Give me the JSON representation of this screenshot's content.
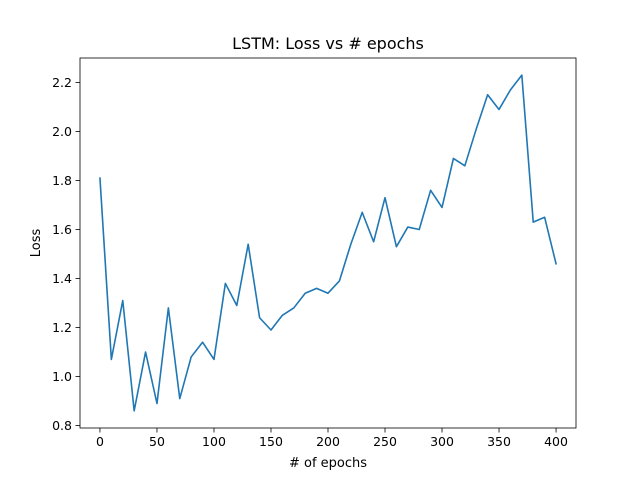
{
  "chart_data": {
    "type": "line",
    "title": "LSTM: Loss vs # epochs",
    "xlabel": "# of epochs",
    "ylabel": "Loss",
    "xlim": [
      -17.5,
      417.5
    ],
    "ylim": [
      0.79,
      2.3
    ],
    "xticks": [
      0,
      50,
      100,
      150,
      200,
      250,
      300,
      350,
      400
    ],
    "yticks": [
      0.8,
      1.0,
      1.2,
      1.4,
      1.6,
      1.8,
      2.0,
      2.2
    ],
    "grid": false,
    "legend": "none",
    "series": [
      {
        "color": "#1f77b4",
        "x": [
          0,
          10,
          20,
          30,
          40,
          50,
          60,
          70,
          80,
          90,
          100,
          110,
          120,
          130,
          140,
          150,
          160,
          170,
          180,
          190,
          200,
          210,
          220,
          230,
          240,
          250,
          260,
          270,
          280,
          290,
          300,
          310,
          320,
          330,
          340,
          350,
          360,
          370,
          380,
          390,
          400
        ],
        "y": [
          1.81,
          1.07,
          1.31,
          0.86,
          1.1,
          0.89,
          1.28,
          0.91,
          1.08,
          1.14,
          1.07,
          1.38,
          1.29,
          1.54,
          1.24,
          1.19,
          1.25,
          1.28,
          1.34,
          1.36,
          1.34,
          1.39,
          1.54,
          1.67,
          1.55,
          1.73,
          1.53,
          1.61,
          1.6,
          1.76,
          1.69,
          1.89,
          1.86,
          2.01,
          2.15,
          2.09,
          2.17,
          2.23,
          1.63,
          1.65,
          1.46
        ]
      }
    ]
  }
}
